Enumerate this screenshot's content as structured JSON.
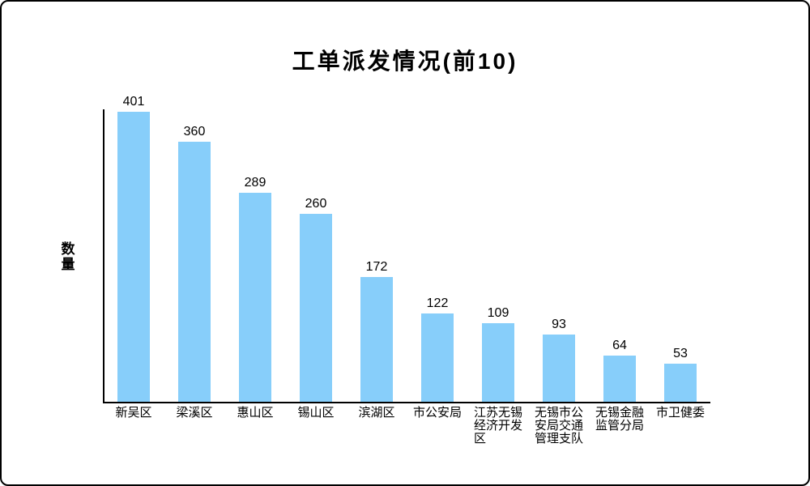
{
  "frame": {
    "background": "#ffffff",
    "border_color": "#000000"
  },
  "chart_data": {
    "type": "bar",
    "title": "工单派发情况(前10)",
    "xlabel": "",
    "ylabel": "数量",
    "categories": [
      "新吴区",
      "梁溪区",
      "惠山区",
      "锡山区",
      "滨湖区",
      "市公安局",
      "江苏无锡经济开发区",
      "无锡市公安局交通管理支队",
      "无锡金融监管分局",
      "市卫健委"
    ],
    "values": [
      401,
      360,
      289,
      260,
      172,
      122,
      109,
      93,
      64,
      53
    ],
    "data_labels": true,
    "bar_color": "#87CEFA",
    "axis_color": "#000000",
    "text_color": "#000000",
    "ylim": [
      0,
      404
    ],
    "grid": false,
    "legend": false,
    "tick_label_wrap_chars": 4
  }
}
